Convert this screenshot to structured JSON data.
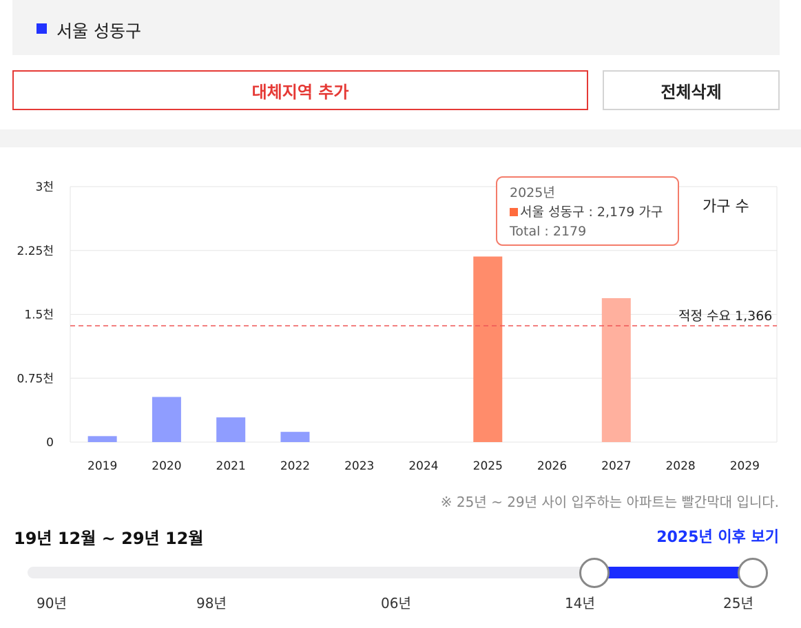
{
  "region_list": {
    "items": [
      {
        "label": "서울 성동구",
        "color": "#2233ff"
      }
    ]
  },
  "buttons": {
    "add_region": "대체지역 추가",
    "clear_all": "전체삭제"
  },
  "chart_data": {
    "type": "bar",
    "categories": [
      "2019",
      "2020",
      "2021",
      "2022",
      "2023",
      "2024",
      "2025",
      "2026",
      "2027",
      "2028",
      "2029"
    ],
    "series": [
      {
        "name": "서울 성동구",
        "values": [
          70,
          530,
          290,
          120,
          0,
          0,
          2179,
          0,
          1690,
          0,
          0
        ]
      }
    ],
    "bar_colors": [
      "#8f9dff",
      "#8f9dff",
      "#8f9dff",
      "#8f9dff",
      "#8f9dff",
      "#8f9dff",
      "#ff8c6b",
      "#ff8c6b",
      "#ffb09e",
      "#ff8c6b",
      "#ff8c6b"
    ],
    "ylim": [
      0,
      3000
    ],
    "y_ticks": [
      {
        "value": 0,
        "label": "0"
      },
      {
        "value": 750,
        "label": "0.75천"
      },
      {
        "value": 1500,
        "label": "1.5천"
      },
      {
        "value": 2250,
        "label": "2.25천"
      },
      {
        "value": 3000,
        "label": "3천"
      }
    ],
    "unit_label": "가구 수",
    "reference_line": {
      "value": 1366,
      "label": "적정 수요 1,366",
      "color": "#ee5555"
    },
    "tooltip": {
      "title": "2025년",
      "series_line": "서울 성동구 : 2,179 가구",
      "total_line": "Total : 2179",
      "swatch_color": "#ff6b3d"
    },
    "grid": true
  },
  "note": "※ 25년 ~ 29년 사이 입주하는 아파트는 빨간막대 입니다.",
  "period": {
    "label": "19년 12월 ~ 29년 12월",
    "after_link": "2025년 이후 보기"
  },
  "range_slider": {
    "scale_labels": [
      "90년",
      "98년",
      "06년",
      "14년",
      "25년"
    ],
    "selected_start": "14년",
    "selected_end": "25년",
    "fill_color": "#1a2cff"
  }
}
